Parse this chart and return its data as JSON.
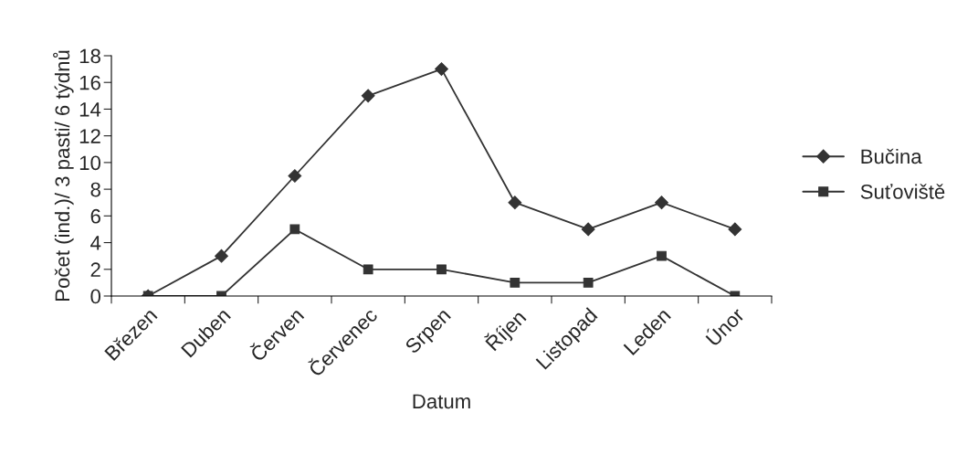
{
  "chart_data": {
    "type": "line",
    "xlabel": "Datum",
    "ylabel": "Počet (ind.)/ 3 pasti/ 6 týdnů",
    "categories": [
      "Březen",
      "Duben",
      "Červen",
      "Červenec",
      "Srpen",
      "Říjen",
      "Listopad",
      "Leden",
      "Únor"
    ],
    "series": [
      {
        "name": "Bučina",
        "color": "#333333",
        "marker": "diamond",
        "values": [
          0,
          3,
          9,
          15,
          17,
          7,
          5,
          7,
          5
        ]
      },
      {
        "name": "Suťoviště",
        "color": "#333333",
        "marker": "square",
        "values": [
          0,
          0,
          5,
          2,
          2,
          1,
          1,
          3,
          0
        ]
      }
    ],
    "ylim": [
      0,
      18
    ],
    "yticks": [
      0,
      2,
      4,
      6,
      8,
      10,
      12,
      14,
      16,
      18
    ],
    "grid": false,
    "legend": "right",
    "line_style": "solid"
  }
}
